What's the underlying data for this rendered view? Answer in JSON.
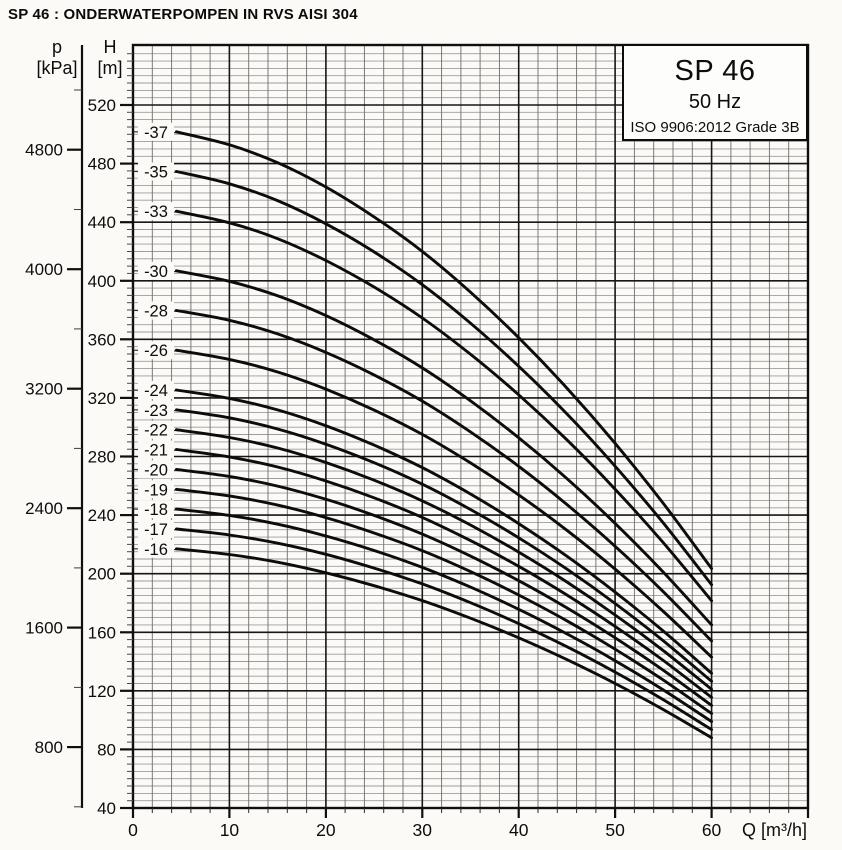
{
  "page": {
    "title": "SP 46 : ONDERWATERPOMPEN IN RVS AISI 304"
  },
  "info_box": {
    "model": "SP 46",
    "frequency": "50 Hz",
    "standard": "ISO 9906:2012 Grade 3B"
  },
  "axes": {
    "pressure": {
      "symbol": "p",
      "unit": "[kPa]",
      "ticks": [
        800,
        1600,
        2400,
        3200,
        4000,
        4800
      ]
    },
    "head": {
      "symbol": "H",
      "unit": "[m]",
      "ticks": [
        40,
        80,
        120,
        160,
        200,
        240,
        280,
        320,
        360,
        400,
        440,
        480,
        520
      ]
    },
    "flow": {
      "unit_label": "Q [m³/h]",
      "ticks": [
        0,
        10,
        20,
        30,
        40,
        50,
        60
      ]
    }
  },
  "chart_data": {
    "type": "line",
    "title": "SP 46 pump performance curves, 50 Hz",
    "xlabel": "Q [m³/h]",
    "ylabel": "H [m]",
    "y2label": "p [kPa]",
    "xlim": [
      0,
      70
    ],
    "ylim": [
      40,
      560
    ],
    "grid": {
      "x_minor_step": 2,
      "x_major_step": 10,
      "y_minor_step": 5,
      "y_major_step": 40,
      "legend_position": "top-right"
    },
    "x": [
      4.5,
      10,
      15,
      20,
      25,
      30,
      35,
      40,
      45,
      50,
      55,
      60
    ],
    "series": [
      {
        "name": "-37",
        "stages": 37,
        "values": [
          501.7,
          492.8,
          480.6,
          464.0,
          443.6,
          420.0,
          392.2,
          361.1,
          326.7,
          289.0,
          247.9,
          203.5
        ]
      },
      {
        "name": "-35",
        "stages": 35,
        "values": [
          474.6,
          466.2,
          454.7,
          438.9,
          419.7,
          397.3,
          371.0,
          341.6,
          309.1,
          273.4,
          234.5,
          192.5
        ]
      },
      {
        "name": "-33",
        "stages": 33,
        "values": [
          447.5,
          439.6,
          428.7,
          413.8,
          395.7,
          374.6,
          349.8,
          322.1,
          291.4,
          257.7,
          221.1,
          181.5
        ]
      },
      {
        "name": "-30",
        "stages": 30,
        "values": [
          406.8,
          399.6,
          389.7,
          376.2,
          359.7,
          340.5,
          318.0,
          292.8,
          264.9,
          234.3,
          201.0,
          165.0
        ]
      },
      {
        "name": "-28",
        "stages": 28,
        "values": [
          379.7,
          373.0,
          363.7,
          351.1,
          335.7,
          317.8,
          296.8,
          273.3,
          247.2,
          218.7,
          187.6,
          154.0
        ]
      },
      {
        "name": "-26",
        "stages": 26,
        "values": [
          352.6,
          346.3,
          337.7,
          326.0,
          311.7,
          295.1,
          275.6,
          253.8,
          229.6,
          203.1,
          174.2,
          143.0
        ]
      },
      {
        "name": "-24",
        "stages": 24,
        "values": [
          325.4,
          319.7,
          311.8,
          301.0,
          287.8,
          272.4,
          254.4,
          234.2,
          211.9,
          187.4,
          160.8,
          132.0
        ]
      },
      {
        "name": "-23",
        "stages": 23,
        "values": [
          311.9,
          306.4,
          298.8,
          288.4,
          275.8,
          261.1,
          243.8,
          224.5,
          203.1,
          179.6,
          154.1,
          126.5
        ]
      },
      {
        "name": "-22",
        "stages": 22,
        "values": [
          298.3,
          293.0,
          285.8,
          275.9,
          263.8,
          249.7,
          233.2,
          214.7,
          194.3,
          171.8,
          147.4,
          121.0
        ]
      },
      {
        "name": "-21",
        "stages": 21,
        "values": [
          284.8,
          279.7,
          272.8,
          263.3,
          251.8,
          238.4,
          222.6,
          205.0,
          185.4,
          164.0,
          140.7,
          115.5
        ]
      },
      {
        "name": "-20",
        "stages": 20,
        "values": [
          271.2,
          266.4,
          259.8,
          250.8,
          239.8,
          227.0,
          212.0,
          195.2,
          176.6,
          156.2,
          134.0,
          110.0
        ]
      },
      {
        "name": "-19",
        "stages": 19,
        "values": [
          257.6,
          253.1,
          246.8,
          238.3,
          227.8,
          215.7,
          201.4,
          185.4,
          167.8,
          148.4,
          127.3,
          104.5
        ]
      },
      {
        "name": "-18",
        "stages": 18,
        "values": [
          244.1,
          239.8,
          233.8,
          225.7,
          215.8,
          204.3,
          190.8,
          175.7,
          158.9,
          140.6,
          120.6,
          99.0
        ]
      },
      {
        "name": "-17",
        "stages": 17,
        "values": [
          230.5,
          226.4,
          220.8,
          213.2,
          203.8,
          193.0,
          180.2,
          165.9,
          150.1,
          132.8,
          113.9,
          93.5
        ]
      },
      {
        "name": "-16",
        "stages": 16,
        "values": [
          217.0,
          213.1,
          207.8,
          200.6,
          191.8,
          181.6,
          169.6,
          156.2,
          141.3,
          125.0,
          107.2,
          88.0
        ]
      }
    ]
  }
}
